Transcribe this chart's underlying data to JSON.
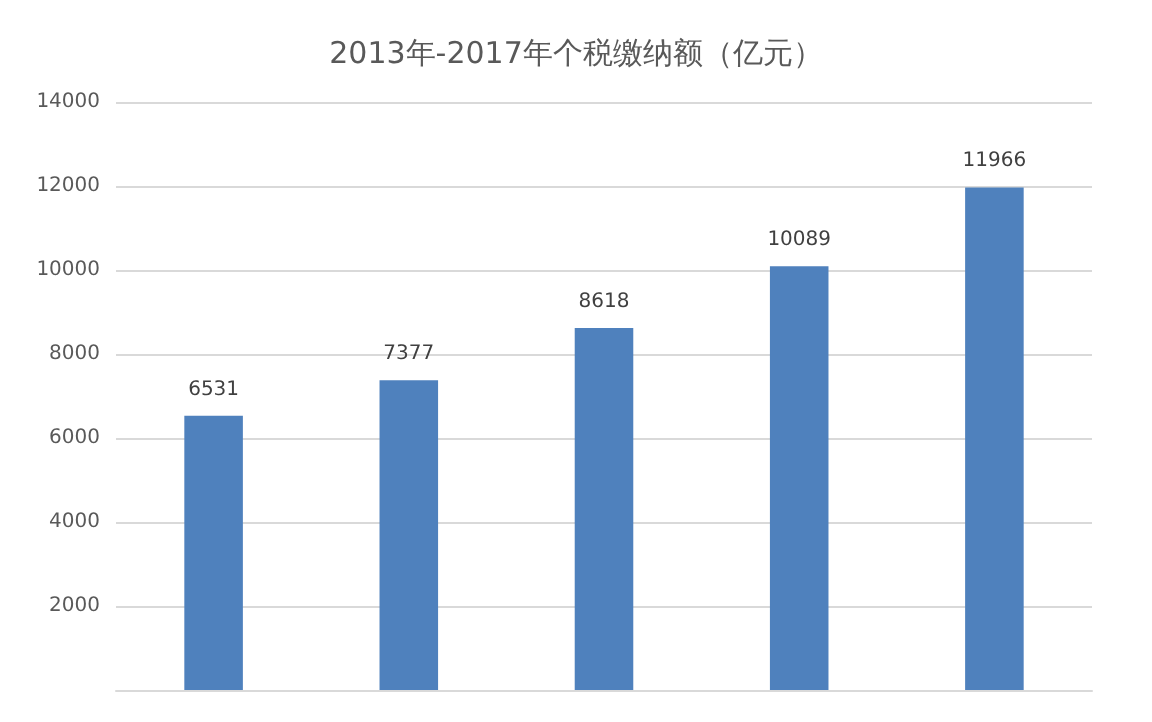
{
  "chart_data": {
    "type": "bar",
    "title": "2013年-2017年个税缴纳额（亿元）",
    "categories": [
      null,
      null,
      null,
      null,
      null
    ],
    "values": [
      6531,
      7377,
      8618,
      10089,
      11966
    ],
    "color": "#4f81bd",
    "ylim": [
      0,
      14000
    ],
    "yticks": [
      2000,
      4000,
      6000,
      8000,
      10000,
      12000,
      14000
    ],
    "grid": "y",
    "data_labels": true
  }
}
